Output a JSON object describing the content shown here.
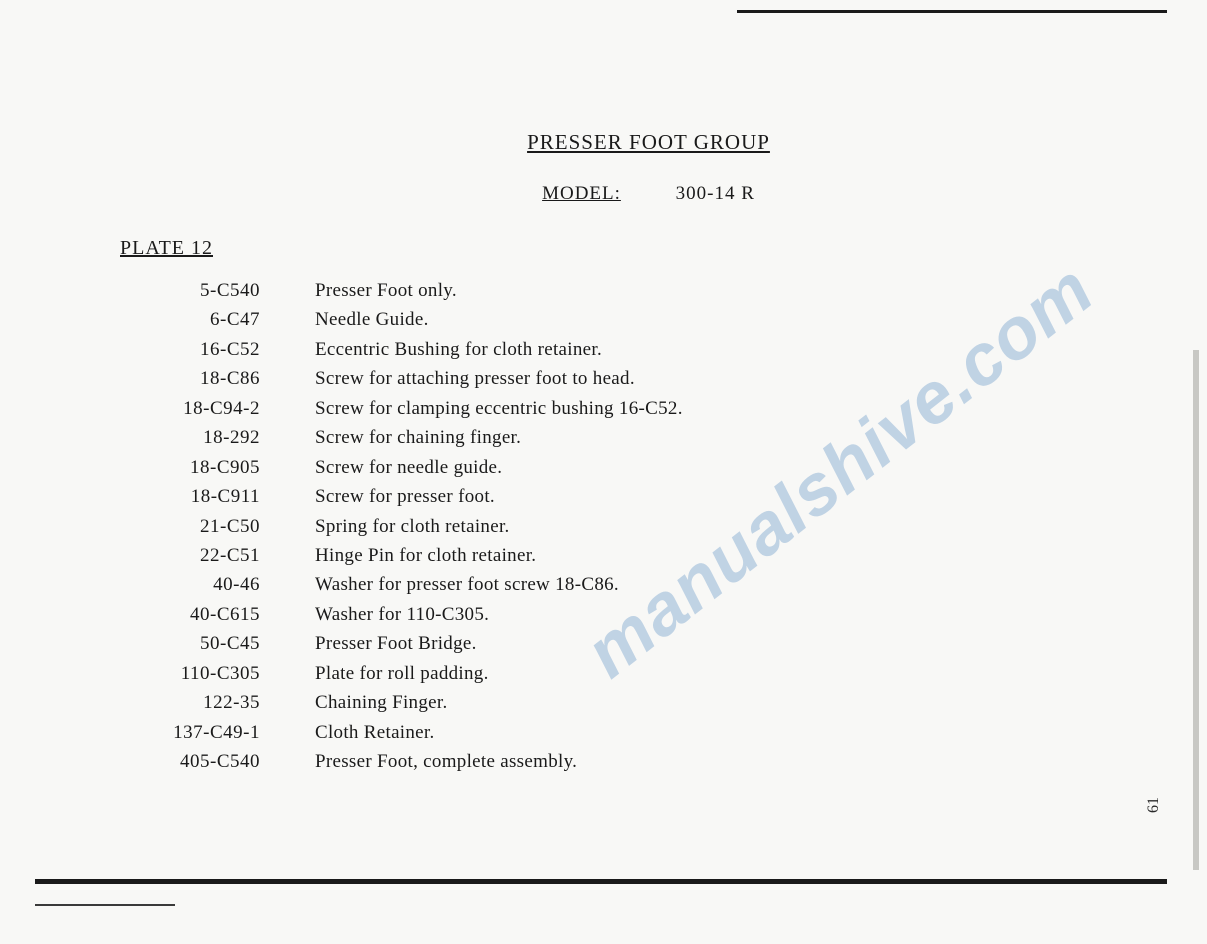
{
  "document": {
    "title": "PRESSER FOOT GROUP",
    "model_label": "MODEL:",
    "model_value": "300-14 R",
    "plate": "PLATE 12",
    "page_number": "61",
    "watermark": "manualshive.com"
  },
  "parts": [
    {
      "number": "5-C540",
      "description": "Presser Foot only."
    },
    {
      "number": "6-C47",
      "description": "Needle Guide."
    },
    {
      "number": "16-C52",
      "description": "Eccentric Bushing for cloth retainer."
    },
    {
      "number": "18-C86",
      "description": "Screw for attaching presser foot to head."
    },
    {
      "number": "18-C94-2",
      "description": "Screw for clamping eccentric bushing 16-C52."
    },
    {
      "number": "18-292",
      "description": "Screw for chaining finger."
    },
    {
      "number": "18-C905",
      "description": "Screw for needle guide."
    },
    {
      "number": "18-C911",
      "description": "Screw for presser foot."
    },
    {
      "number": "21-C50",
      "description": "Spring for cloth retainer."
    },
    {
      "number": "22-C51",
      "description": "Hinge Pin for cloth retainer."
    },
    {
      "number": "40-46",
      "description": "Washer for presser foot screw 18-C86."
    },
    {
      "number": "40-C615",
      "description": "Washer for 110-C305."
    },
    {
      "number": "50-C45",
      "description": "Presser Foot Bridge."
    },
    {
      "number": "110-C305",
      "description": "Plate for roll padding."
    },
    {
      "number": "122-35",
      "description": "Chaining Finger."
    },
    {
      "number": "137-C49-1",
      "description": "Cloth Retainer."
    },
    {
      "number": "405-C540",
      "description": "Presser Foot, complete assembly."
    }
  ]
}
